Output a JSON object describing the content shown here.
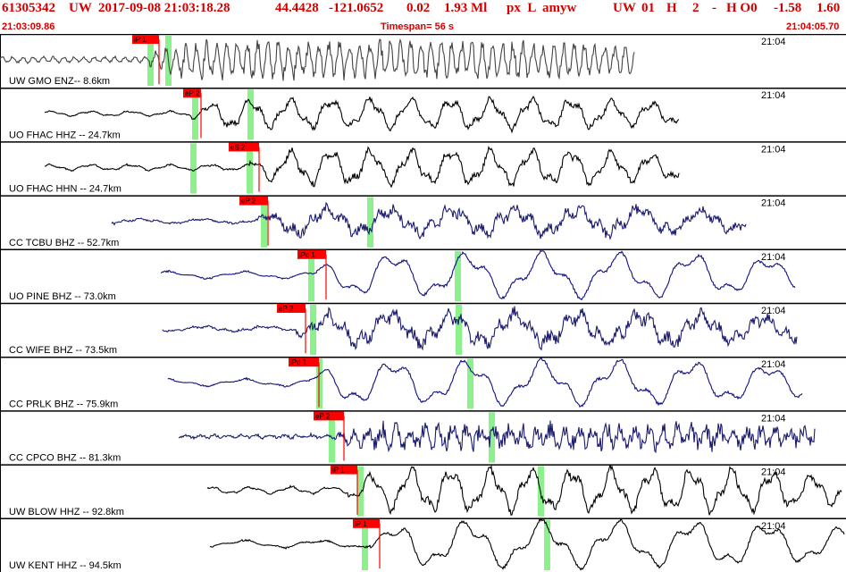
{
  "header": {
    "event_id": "61305342",
    "network": "UW",
    "datetime": "2017-09-08 21:03:18.28",
    "lat": "44.4428",
    "lon": "-121.0652",
    "depth": "0.02",
    "magnitude": "1.93 Ml",
    "flags": "px  L  amyw",
    "net2": "UW",
    "num": "01",
    "h1": "H",
    "n2": "2",
    "dash": "-",
    "h0": "H O0",
    "val1": "-1.58",
    "val2": "1.60"
  },
  "subheader": {
    "start_time": "21:03:09.86",
    "timespan": "Timespan=  56 s",
    "end_time": "21:04:05.70"
  },
  "colors": {
    "header_red": "#d40000",
    "pick_red": "#ff0000",
    "green_marker": "#8cf08c",
    "trace_gray": "#444444",
    "trace_black": "#000000",
    "trace_navy": "#1a1a6e",
    "trace_blue": "#101080"
  },
  "traces": [
    {
      "label": "UW GMO ENZ-- 8.6km",
      "time_label": "21:04",
      "pick": "iP 1",
      "color": "trace_gray"
    },
    {
      "label": "UO FHAC HHZ -- 24.7km",
      "time_label": "21:04",
      "pick": "eP 2",
      "color": "trace_black"
    },
    {
      "label": "UO FHAC HHN -- 24.7km",
      "time_label": "21:04",
      "pick": "eS 2",
      "color": "trace_black"
    },
    {
      "label": "CC TCBU BHZ -- 52.7km",
      "time_label": "21:04",
      "pick": "eP 2",
      "color": "trace_navy"
    },
    {
      "label": "UO PINE BHZ -- 73.0km",
      "time_label": "21:04",
      "pick": "iPc 1",
      "color": "trace_blue"
    },
    {
      "label": "CC WIFE BHZ -- 73.5km",
      "time_label": "21:04",
      "pick": "eP 2",
      "color": "trace_navy"
    },
    {
      "label": "CC PRLK BHZ -- 75.9km",
      "time_label": "21:04",
      "pick": "iPd 1",
      "color": "trace_blue"
    },
    {
      "label": "CC CPCO BHZ -- 81.3km",
      "time_label": "21:04",
      "pick": "eP 2",
      "color": "trace_navy"
    },
    {
      "label": "UW BLOW HHZ -- 92.8km",
      "time_label": "21:04",
      "pick": "iP 1",
      "color": "trace_black"
    },
    {
      "label": "UW KENT HHZ -- 94.5km",
      "time_label": "21:04",
      "pick": "iP 1",
      "color": "trace_black"
    }
  ]
}
